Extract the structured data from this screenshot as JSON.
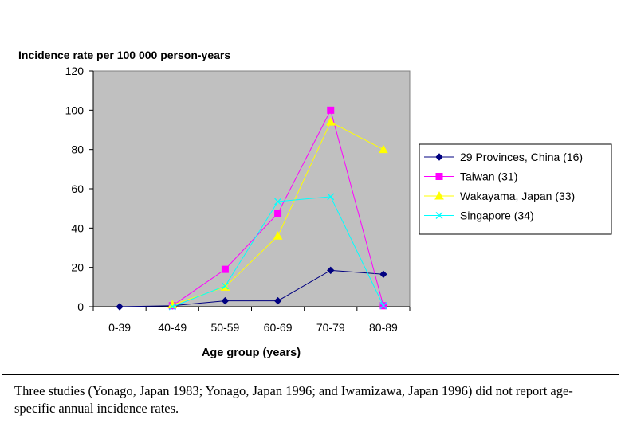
{
  "chart_data": {
    "type": "line",
    "title": "",
    "ylabel": "Incidence rate per 100 000 person-years",
    "xlabel": "Age group (years)",
    "categories": [
      "0-39",
      "40-49",
      "50-59",
      "60-69",
      "70-79",
      "80-89"
    ],
    "ylim": [
      0,
      120
    ],
    "yticks": [
      0,
      20,
      40,
      60,
      80,
      100,
      120
    ],
    "grid": false,
    "legend_position": "right",
    "plot_background": "#c0c0c0",
    "series": [
      {
        "name": "29 Provinces, China (16)",
        "color": "#000080",
        "marker": "diamond",
        "values": [
          0,
          0.5,
          3,
          3,
          18.5,
          16.5
        ]
      },
      {
        "name": "Taiwan (31)",
        "color": "#ff00ff",
        "marker": "square",
        "values": [
          null,
          0.5,
          19,
          47.5,
          100,
          0.5
        ]
      },
      {
        "name": "Wakayama, Japan (33)",
        "color": "#ffff00",
        "marker": "triangle",
        "values": [
          null,
          1,
          10,
          36,
          94,
          80
        ]
      },
      {
        "name": "Singapore (34)",
        "color": "#00ffff",
        "marker": "x",
        "values": [
          null,
          0,
          10.5,
          53.5,
          56,
          0.5
        ]
      }
    ]
  },
  "caption": "Three studies (Yonago, Japan 1983; Yonago, Japan 1996; and Iwamizawa, Japan 1996) did not report age-specific annual incidence rates."
}
